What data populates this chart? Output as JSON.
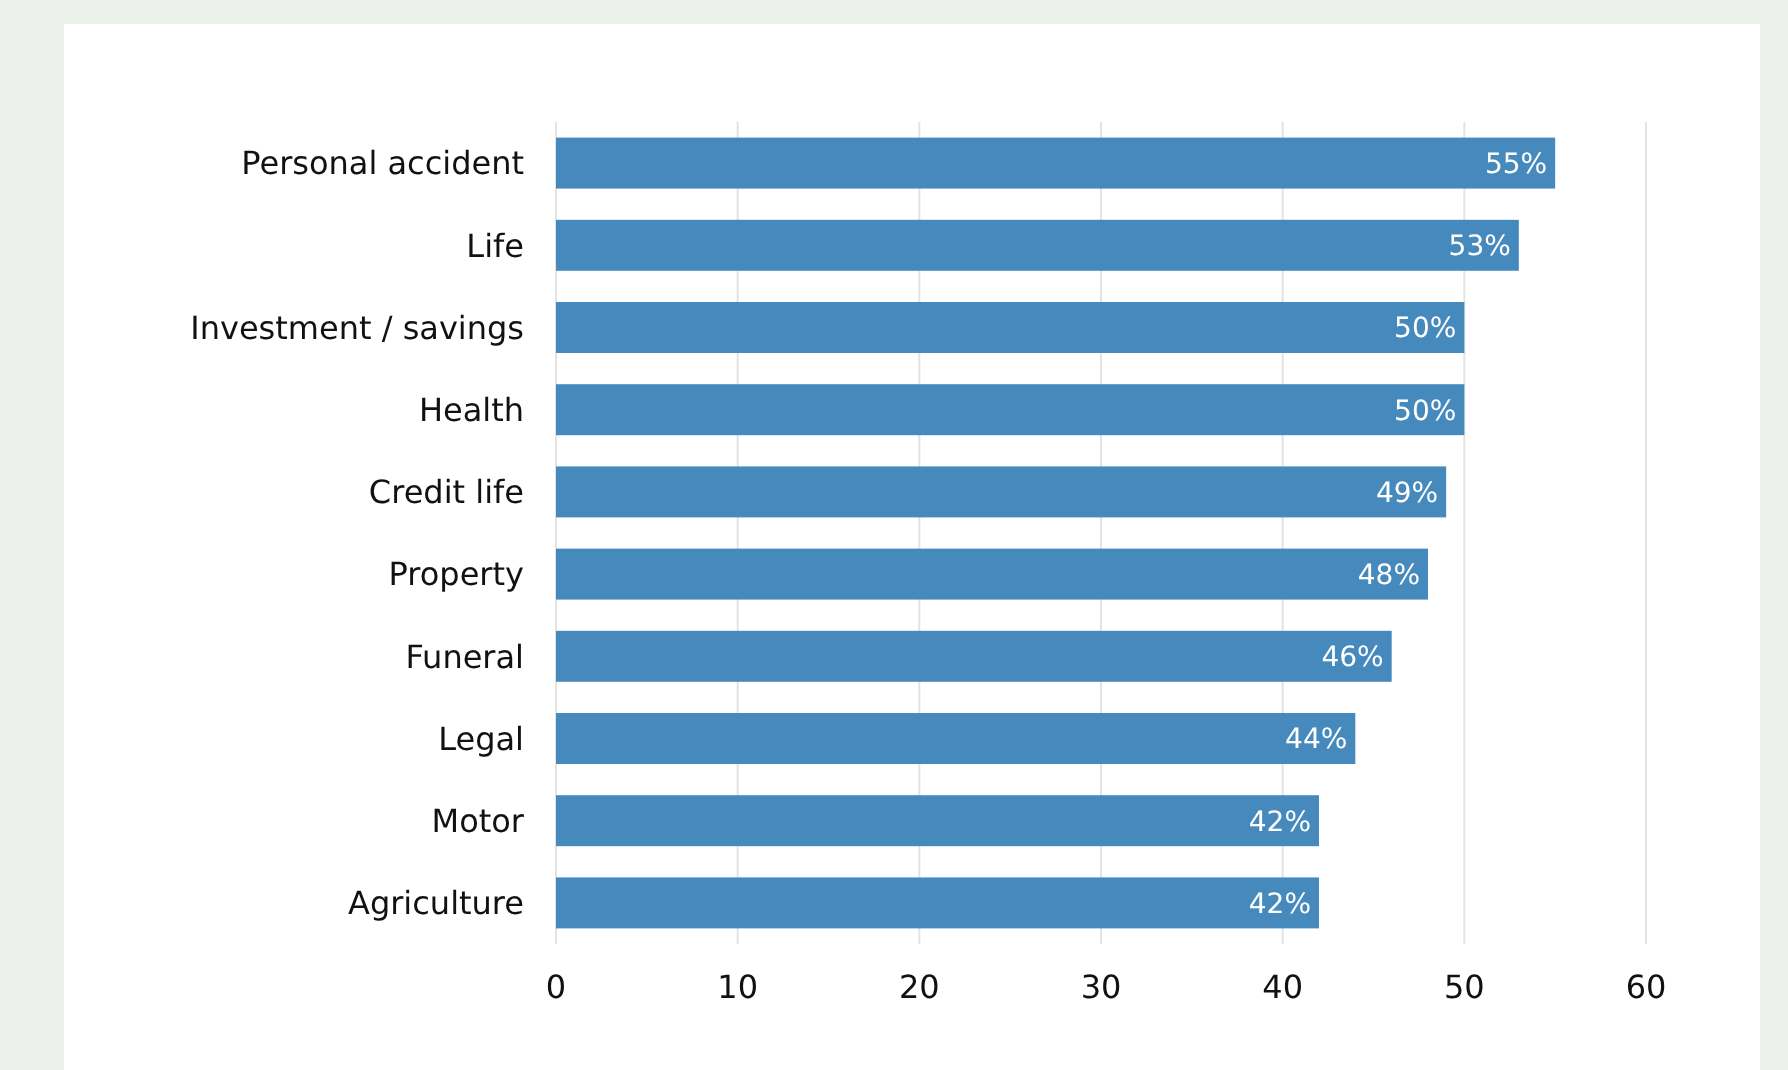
{
  "chart_data": {
    "type": "bar",
    "orientation": "horizontal",
    "categories": [
      "Personal accident",
      "Life",
      "Investment / savings",
      "Health",
      "Credit life",
      "Property",
      "Funeral",
      "Legal",
      "Motor",
      "Agriculture"
    ],
    "values": [
      55,
      53,
      50,
      50,
      49,
      48,
      46,
      44,
      42,
      42
    ],
    "value_labels": [
      "55%",
      "53%",
      "50%",
      "50%",
      "49%",
      "48%",
      "46%",
      "44%",
      "42%",
      "42%"
    ],
    "color": "#4689bd",
    "xlim": [
      0,
      60
    ],
    "xticks": [
      0,
      10,
      20,
      30,
      40,
      50,
      60
    ],
    "grid": "x"
  }
}
